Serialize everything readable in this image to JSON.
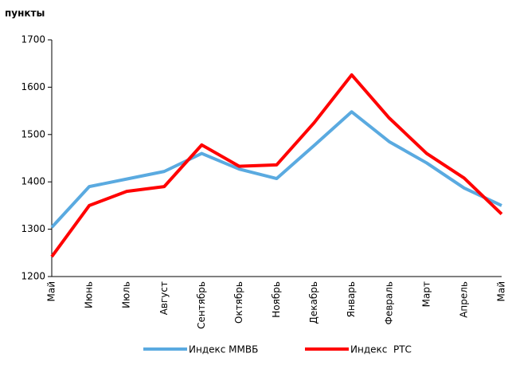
{
  "chart_data": {
    "type": "line",
    "y_label": "пункты",
    "categories": [
      "Май",
      "Июнь",
      "Июль",
      "Август",
      "Сентябрь",
      "Октябрь",
      "Ноябрь",
      "Декабрь",
      "Январь",
      "Февраль",
      "Март",
      "Апрель",
      "Май"
    ],
    "series": [
      {
        "name": "Индекс ММВБ",
        "color": "#5aaae0",
        "values": [
          1304,
          1390,
          1406,
          1422,
          1460,
          1427,
          1407,
          1477,
          1548,
          1485,
          1440,
          1387,
          1350
        ]
      },
      {
        "name": "Индекс  РТС",
        "color": "#ff0000",
        "values": [
          1242,
          1350,
          1380,
          1390,
          1478,
          1433,
          1436,
          1525,
          1626,
          1535,
          1460,
          1408,
          1332
        ]
      }
    ],
    "ylim": [
      1200,
      1700
    ],
    "yticks": [
      1200,
      1300,
      1400,
      1500,
      1600,
      1700
    ],
    "grid": false,
    "legend": "bottom"
  }
}
